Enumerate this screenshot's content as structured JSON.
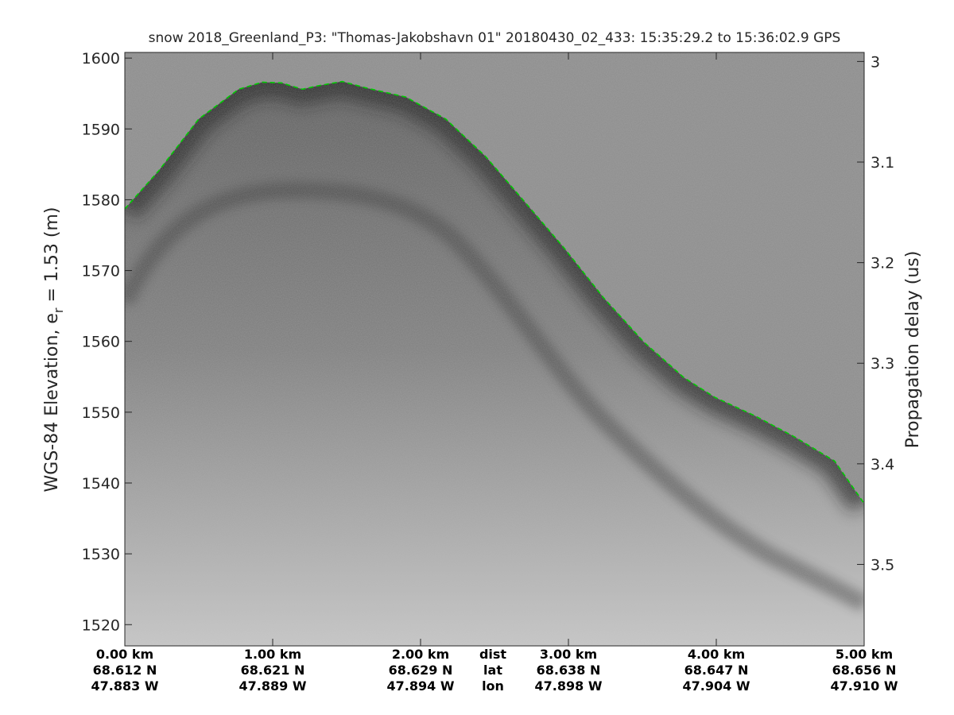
{
  "chart_data": {
    "type": "echogram",
    "title": "snow 2018_Greenland_P3: \"Thomas-Jakobshavn 01\"  20180430_02_433: 15:35:29.2 to 15:36:02.9 GPS",
    "ylabel": "WGS-84 Elevation, e",
    "ylabel_subscript": "r",
    "ylabel_rest": " = 1.53 (m)",
    "y2label": "Propagation delay (us)",
    "xlim": [
      0,
      5
    ],
    "xticks": [
      {
        "value": 0,
        "label": "0.00 km"
      },
      {
        "value": 1,
        "label": "1.00 km"
      },
      {
        "value": 2,
        "label": "2.00 km"
      },
      {
        "value": 3,
        "label": "3.00 km"
      },
      {
        "value": 4,
        "label": "4.00 km"
      },
      {
        "value": 5,
        "label": "5.00 km"
      }
    ],
    "lat_labels": [
      "68.612 N",
      "68.621 N",
      "68.629 N",
      "68.638 N",
      "68.647 N",
      "68.656 N"
    ],
    "lon_labels": [
      "47.883 W",
      "47.889 W",
      "47.894 W",
      "47.898 W",
      "47.904 W",
      "47.910 W"
    ],
    "row_names": [
      "dist",
      "lat",
      "lon"
    ],
    "ylim": [
      1517.0,
      1600.8
    ],
    "yticks": [
      1520,
      1530,
      1540,
      1550,
      1560,
      1570,
      1580,
      1590,
      1600
    ],
    "y2lim": [
      2.991,
      3.581
    ],
    "y2_reversed": true,
    "y2ticks": [
      3,
      3.1,
      3.2,
      3.3,
      3.4,
      3.5
    ],
    "x": [
      0,
      0.23,
      0.5,
      0.77,
      0.93,
      1.06,
      1.2,
      1.31,
      1.47,
      1.63,
      1.9,
      2.17,
      2.44,
      2.7,
      2.97,
      3.24,
      3.51,
      3.78,
      3.99,
      4.26,
      4.53,
      4.8,
      5.0
    ],
    "values": [
      1578.7,
      1584.1,
      1591.4,
      1595.6,
      1596.6,
      1596.5,
      1595.6,
      1596.1,
      1596.7,
      1595.8,
      1594.5,
      1591.4,
      1586.1,
      1579.8,
      1573.2,
      1566.1,
      1559.9,
      1554.9,
      1552.1,
      1549.5,
      1546.5,
      1543.1,
      1537.1
    ],
    "color": "#00cc00",
    "line_style": "dashed"
  }
}
